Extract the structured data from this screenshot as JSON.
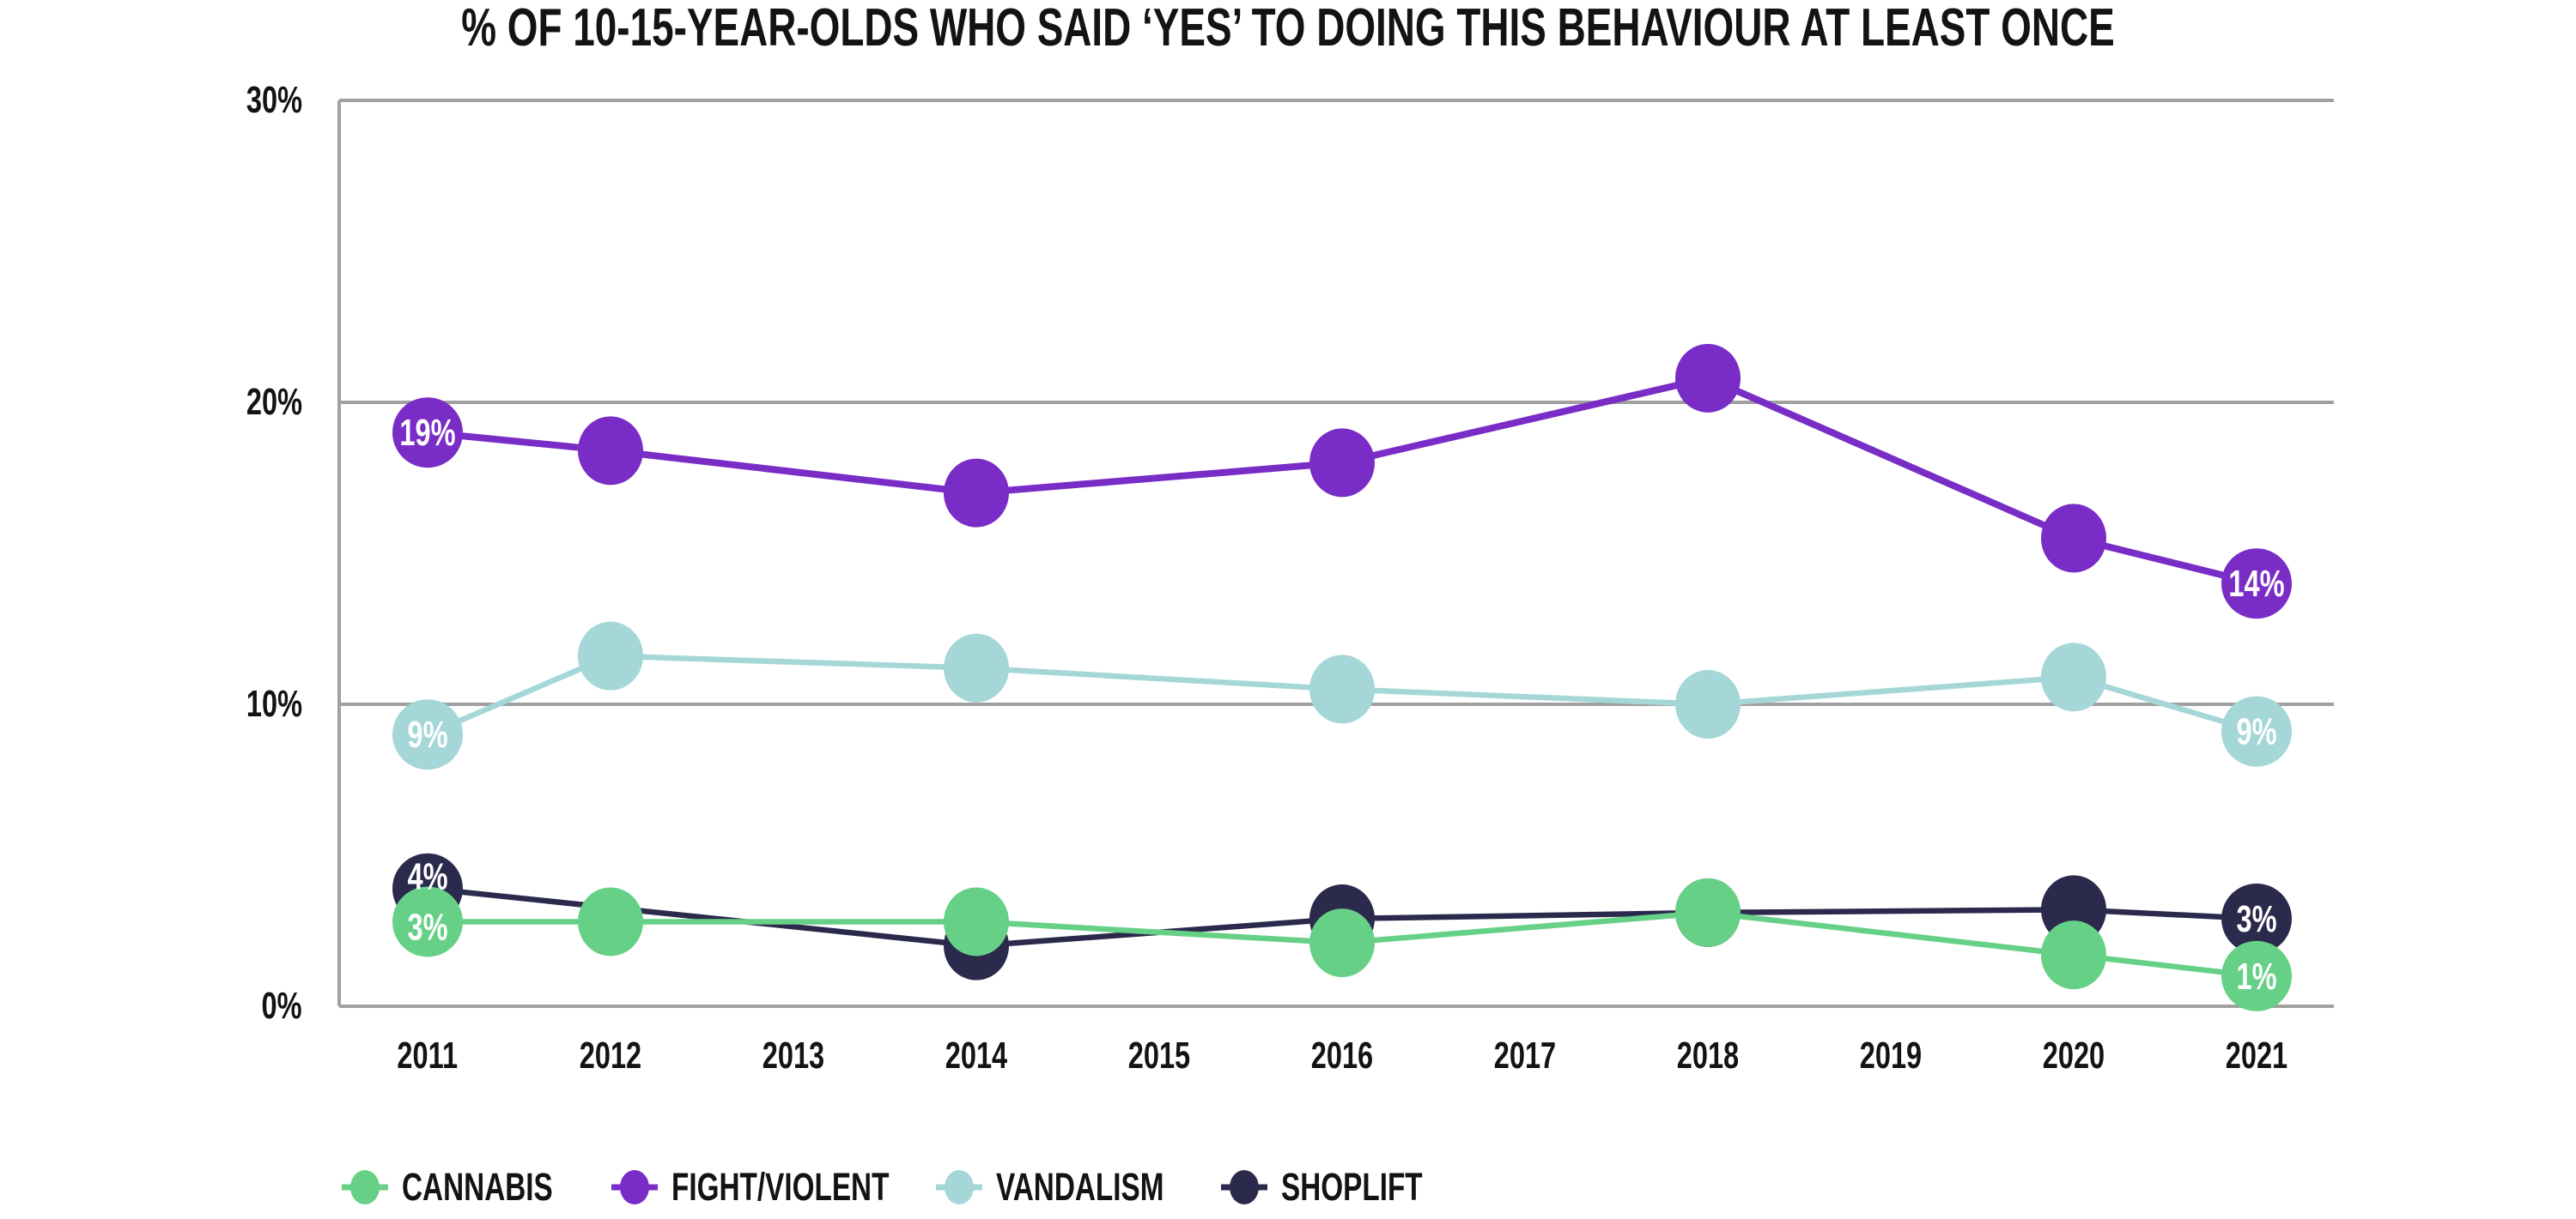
{
  "title": "% OF 10-15-YEAR-OLDS WHO SAID ‘YES’ TO DOING THIS BEHAVIOUR AT LEAST ONCE",
  "colors": {
    "background": "#ffffff",
    "grid": "#a0a0a0",
    "axis_text": "#131313",
    "point_label_text": "#ffffff"
  },
  "chart_data": {
    "type": "line",
    "title": "% OF 10-15-YEAR-OLDS WHO SAID ‘YES’ TO DOING THIS BEHAVIOUR AT LEAST ONCE",
    "xlabel": "",
    "ylabel": "",
    "ylim": [
      0,
      30
    ],
    "grid": true,
    "legend_position": "bottom",
    "x_tick_labels": [
      "2011",
      "2012",
      "2013",
      "2014",
      "2015",
      "2016",
      "2017",
      "2018",
      "2019",
      "2020",
      "2021"
    ],
    "y_ticks": [
      {
        "label": "0%",
        "value": 0
      },
      {
        "label": "10%",
        "value": 10
      },
      {
        "label": "20%",
        "value": 20
      },
      {
        "label": "30%",
        "value": 30
      }
    ],
    "series": [
      {
        "name": "CANNABIS",
        "color": "#66d186",
        "x": [
          2011,
          2012,
          2014,
          2016,
          2018,
          2020,
          2021
        ],
        "values": [
          2.8,
          2.8,
          2.8,
          2.1,
          3.1,
          1.7,
          1
        ],
        "point_labels": {
          "2011": "3%",
          "2021": "1%"
        }
      },
      {
        "name": "FIGHT/VIOLENT",
        "color": "#7a2dc6",
        "x": [
          2011,
          2012,
          2014,
          2016,
          2018,
          2020,
          2021
        ],
        "values": [
          19,
          18.4,
          17,
          18,
          20.8,
          15.5,
          14
        ],
        "point_labels": {
          "2011": "19%",
          "2021": "14%"
        }
      },
      {
        "name": "VANDALISM",
        "color": "#a5d6d8",
        "x": [
          2011,
          2012,
          2014,
          2016,
          2018,
          2020,
          2021
        ],
        "values": [
          9,
          11.6,
          11.2,
          10.5,
          10,
          10.9,
          9.1
        ],
        "point_labels": {
          "2011": "9%",
          "2021": "9%"
        }
      },
      {
        "name": "SHOPLIFT",
        "color": "#2b2a4d",
        "x": [
          2011,
          2014,
          2016,
          2018,
          2020,
          2021
        ],
        "values": [
          3.9,
          2,
          2.9,
          3.1,
          3.2,
          2.9
        ],
        "point_labels": {
          "2011": "4%",
          "2021": "3%"
        }
      }
    ]
  }
}
